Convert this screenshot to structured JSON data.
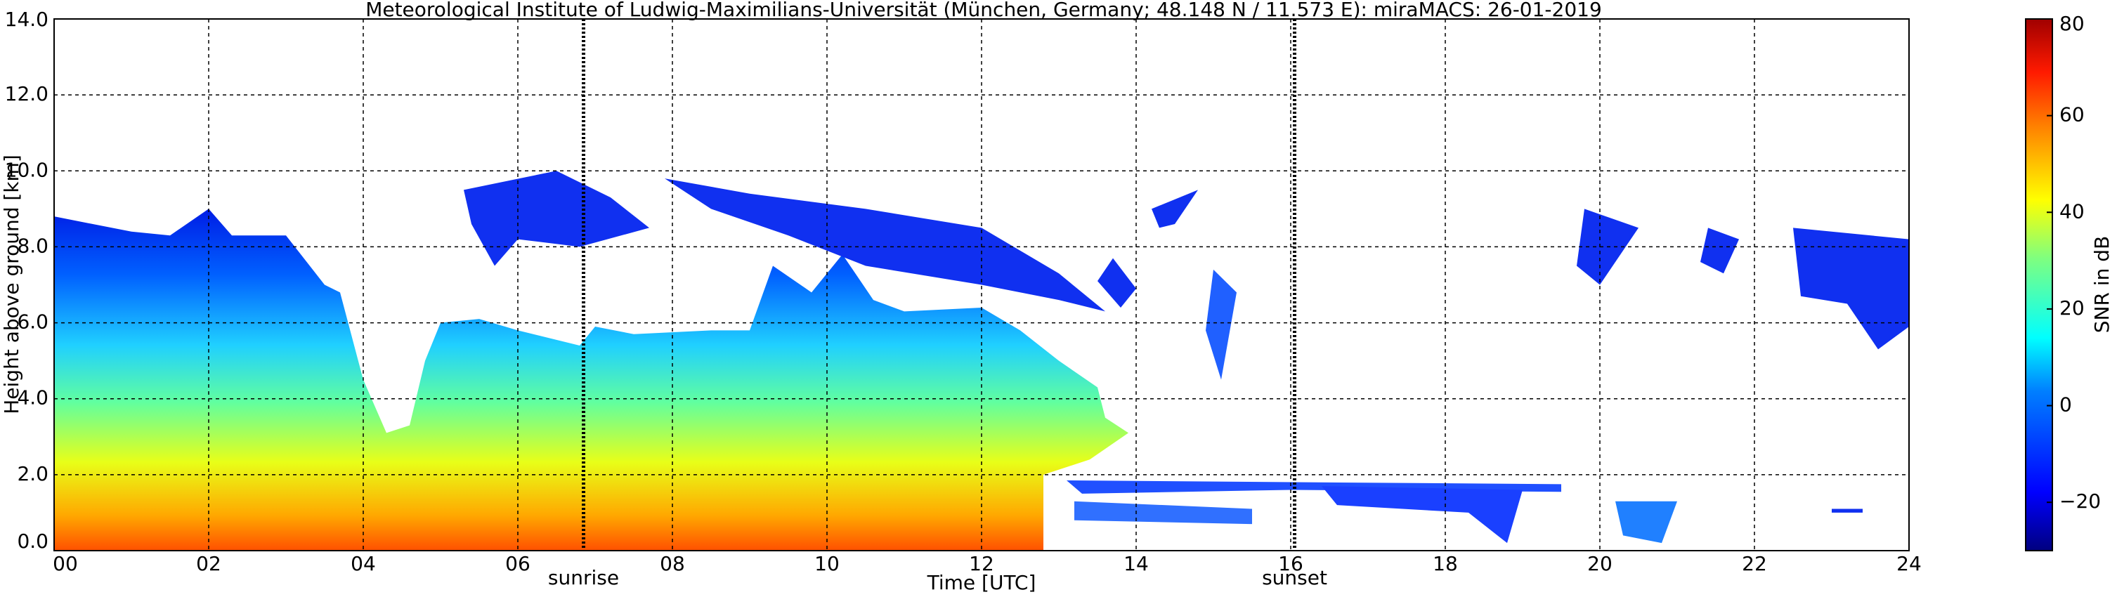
{
  "chart_data": {
    "type": "radar-timeheight",
    "title": "Meteorological Institute of Ludwig-Maximilians-Universität (München, Germany; 48.148 N / 11.573 E):    miraMACS: 26-01-2019",
    "x_label": "Time [UTC]",
    "y_label": "Height above ground [km]",
    "xlim": [
      0,
      24
    ],
    "xticks": [
      {
        "value": 0,
        "label": "00"
      },
      {
        "value": 2,
        "label": "02"
      },
      {
        "value": 4,
        "label": "04"
      },
      {
        "value": 6,
        "label": "06"
      },
      {
        "value": 8,
        "label": "08"
      },
      {
        "value": 10,
        "label": "10"
      },
      {
        "value": 12,
        "label": "12"
      },
      {
        "value": 14,
        "label": "14"
      },
      {
        "value": 16,
        "label": "16"
      },
      {
        "value": 18,
        "label": "18"
      },
      {
        "value": 20,
        "label": "20"
      },
      {
        "value": 22,
        "label": "22"
      },
      {
        "value": 24,
        "label": "24"
      }
    ],
    "ylim": [
      0,
      14
    ],
    "yticks": [
      {
        "value": 0,
        "label": "0.0"
      },
      {
        "value": 2,
        "label": "2.0"
      },
      {
        "value": 4,
        "label": "4.0"
      },
      {
        "value": 6,
        "label": "6.0"
      },
      {
        "value": 8,
        "label": "8.0"
      },
      {
        "value": 10,
        "label": "10.0"
      },
      {
        "value": 12,
        "label": "12.0"
      },
      {
        "value": 14,
        "label": "14.0"
      }
    ],
    "grid": true,
    "annotations": [
      {
        "x": 6.85,
        "label": "sunrise"
      },
      {
        "x": 16.05,
        "label": "sunset"
      }
    ],
    "colorbar": {
      "label": "SNR in dB",
      "lim": [
        -30,
        80
      ],
      "ticks": [
        {
          "value": -20,
          "label": "−20"
        },
        0,
        20,
        40,
        60,
        80
      ]
    }
  }
}
